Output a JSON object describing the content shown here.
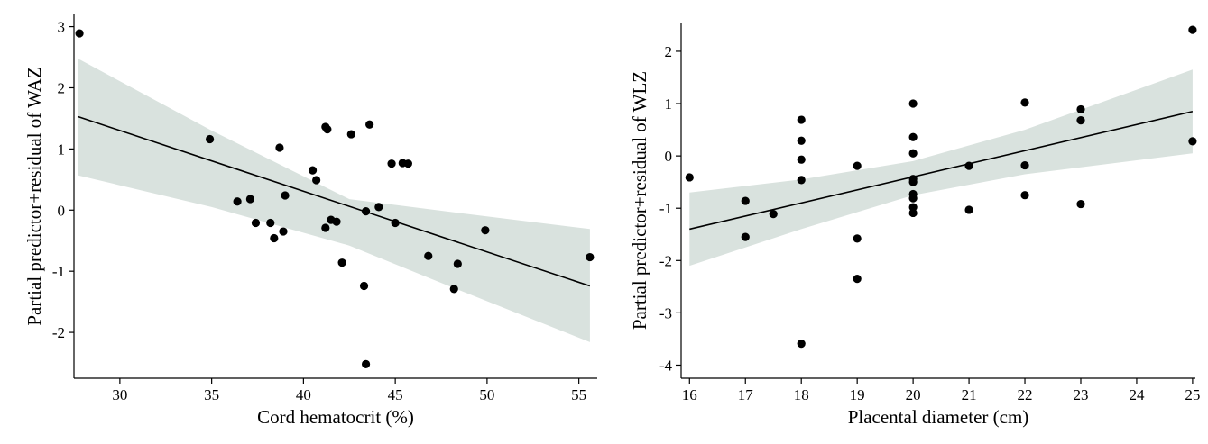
{
  "chart_data": [
    {
      "type": "scatter",
      "title": "",
      "xlabel": "Cord hematocrit (%)",
      "ylabel": "Partial predictor+residual of WAZ",
      "xlim": [
        27.5,
        56.0
      ],
      "ylim": [
        -2.75,
        3.2
      ],
      "xticks": [
        30,
        35,
        40,
        45,
        50,
        55
      ],
      "yticks": [
        -2,
        -1,
        0,
        1,
        2,
        3
      ],
      "grid": false,
      "colors": {
        "points": "#000000",
        "fit_line": "#000000",
        "ci_band": "#d9e2de"
      },
      "fit_line": {
        "x": [
          27.7,
          55.6
        ],
        "y": [
          1.53,
          -1.24
        ]
      },
      "ci_band": {
        "x": [
          27.7,
          35.0,
          42.5,
          48.0,
          55.6
        ],
        "lower": [
          0.57,
          0.05,
          -0.58,
          -1.25,
          -2.16
        ],
        "upper": [
          2.48,
          1.3,
          0.18,
          -0.03,
          -0.31
        ]
      },
      "points": [
        {
          "x": 27.8,
          "y": 2.89
        },
        {
          "x": 34.9,
          "y": 1.16
        },
        {
          "x": 36.4,
          "y": 0.14
        },
        {
          "x": 37.1,
          "y": 0.18
        },
        {
          "x": 37.4,
          "y": -0.21
        },
        {
          "x": 38.2,
          "y": -0.21
        },
        {
          "x": 38.4,
          "y": -0.46
        },
        {
          "x": 38.7,
          "y": 1.02
        },
        {
          "x": 38.9,
          "y": -0.35
        },
        {
          "x": 39.0,
          "y": 0.24
        },
        {
          "x": 40.5,
          "y": 0.65
        },
        {
          "x": 40.7,
          "y": 0.49
        },
        {
          "x": 41.2,
          "y": 1.36
        },
        {
          "x": 41.3,
          "y": 1.32
        },
        {
          "x": 41.2,
          "y": -0.29
        },
        {
          "x": 41.5,
          "y": -0.16
        },
        {
          "x": 41.8,
          "y": -0.19
        },
        {
          "x": 42.1,
          "y": -0.86
        },
        {
          "x": 42.6,
          "y": 1.24
        },
        {
          "x": 43.3,
          "y": -1.24
        },
        {
          "x": 43.4,
          "y": -0.02
        },
        {
          "x": 43.4,
          "y": -2.52
        },
        {
          "x": 43.6,
          "y": 1.4
        },
        {
          "x": 44.1,
          "y": 0.05
        },
        {
          "x": 44.8,
          "y": 0.76
        },
        {
          "x": 45.0,
          "y": -0.21
        },
        {
          "x": 45.4,
          "y": 0.77
        },
        {
          "x": 45.7,
          "y": 0.76
        },
        {
          "x": 46.8,
          "y": -0.75
        },
        {
          "x": 48.2,
          "y": -1.29
        },
        {
          "x": 48.4,
          "y": -0.88
        },
        {
          "x": 49.9,
          "y": -0.33
        },
        {
          "x": 55.6,
          "y": -0.77
        }
      ]
    },
    {
      "type": "scatter",
      "title": "",
      "xlabel": "Placental diameter (cm)",
      "ylabel": "Partial predictor+residual of WLZ",
      "xlim": [
        15.85,
        25.05
      ],
      "ylim": [
        -4.25,
        2.55
      ],
      "xticks": [
        16,
        17,
        18,
        19,
        20,
        21,
        22,
        23,
        24,
        25
      ],
      "yticks": [
        -4,
        -3,
        -2,
        -1,
        0,
        1,
        2
      ],
      "grid": false,
      "colors": {
        "points": "#000000",
        "fit_line": "#000000",
        "ci_band": "#d9e2de"
      },
      "fit_line": {
        "x": [
          16,
          25
        ],
        "y": [
          -1.4,
          0.85
        ]
      },
      "ci_band": {
        "x": [
          16,
          18,
          20,
          22,
          25
        ],
        "lower": [
          -2.1,
          -1.4,
          -0.75,
          -0.35,
          0.05
        ],
        "upper": [
          -0.7,
          -0.45,
          -0.1,
          0.5,
          1.65
        ]
      },
      "points": [
        {
          "x": 16.0,
          "y": -0.41
        },
        {
          "x": 17.0,
          "y": -0.86
        },
        {
          "x": 17.0,
          "y": -1.55
        },
        {
          "x": 17.5,
          "y": -1.11
        },
        {
          "x": 18.0,
          "y": 0.69
        },
        {
          "x": 18.0,
          "y": 0.29
        },
        {
          "x": 18.0,
          "y": -0.07
        },
        {
          "x": 18.0,
          "y": -0.46
        },
        {
          "x": 18.0,
          "y": -3.59
        },
        {
          "x": 19.0,
          "y": -0.19
        },
        {
          "x": 19.0,
          "y": -1.58
        },
        {
          "x": 19.0,
          "y": -2.35
        },
        {
          "x": 20.0,
          "y": 1.0
        },
        {
          "x": 20.0,
          "y": 0.36
        },
        {
          "x": 20.0,
          "y": 0.05
        },
        {
          "x": 20.0,
          "y": -0.44
        },
        {
          "x": 20.0,
          "y": -0.5
        },
        {
          "x": 20.0,
          "y": -0.73
        },
        {
          "x": 20.0,
          "y": -0.81
        },
        {
          "x": 20.0,
          "y": -0.98
        },
        {
          "x": 20.0,
          "y": -1.09
        },
        {
          "x": 21.0,
          "y": -0.19
        },
        {
          "x": 21.0,
          "y": -1.03
        },
        {
          "x": 22.0,
          "y": 1.02
        },
        {
          "x": 22.0,
          "y": -0.18
        },
        {
          "x": 22.0,
          "y": -0.75
        },
        {
          "x": 23.0,
          "y": 0.89
        },
        {
          "x": 23.0,
          "y": 0.68
        },
        {
          "x": 23.0,
          "y": -0.92
        },
        {
          "x": 25.0,
          "y": 2.41
        },
        {
          "x": 25.0,
          "y": 0.28
        }
      ]
    }
  ]
}
